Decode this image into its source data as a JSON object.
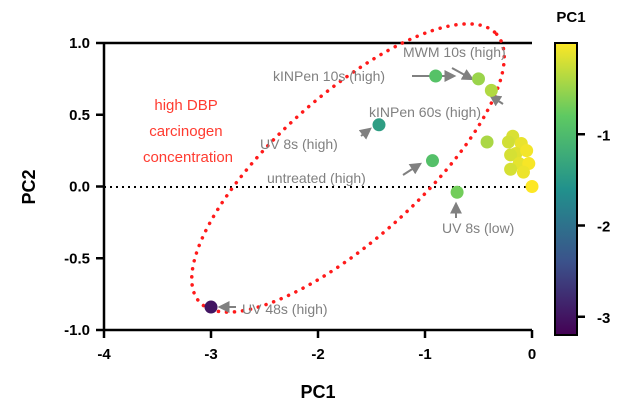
{
  "chart_data": {
    "type": "scatter",
    "xlabel": "PC1",
    "ylabel": "PC2",
    "xlim": [
      -4,
      0
    ],
    "ylim": [
      -1.0,
      1.0
    ],
    "x_ticks": [
      "-4",
      "-3",
      "-2",
      "-1",
      "0"
    ],
    "y_ticks": [
      "1.0",
      "0.5",
      "0.0",
      "-0.5",
      "-1.0"
    ],
    "zero_line": "dotted horizontal line at PC2 = 0",
    "colorbar": {
      "title": "PC1",
      "ticks": [
        "-1",
        "-2",
        "-3"
      ],
      "range": [
        -3.2,
        0
      ],
      "colormap": "viridis"
    },
    "points": [
      {
        "x": -3.0,
        "y": -0.84,
        "color_value": -3.0
      },
      {
        "x": -1.43,
        "y": 0.43,
        "color_value": -1.43
      },
      {
        "x": -0.9,
        "y": 0.77,
        "color_value": -0.9
      },
      {
        "x": -0.93,
        "y": 0.18,
        "color_value": -0.93
      },
      {
        "x": -0.7,
        "y": -0.04,
        "color_value": -0.7
      },
      {
        "x": -0.5,
        "y": 0.75,
        "color_value": -0.5
      },
      {
        "x": -0.38,
        "y": 0.67,
        "color_value": -0.38
      },
      {
        "x": -0.42,
        "y": 0.31,
        "color_value": -0.42
      },
      {
        "x": -0.18,
        "y": 0.35,
        "color_value": -0.18
      },
      {
        "x": -0.1,
        "y": 0.3,
        "color_value": -0.1
      },
      {
        "x": -0.22,
        "y": 0.31,
        "color_value": -0.22
      },
      {
        "x": -0.15,
        "y": 0.23,
        "color_value": -0.15
      },
      {
        "x": -0.05,
        "y": 0.25,
        "color_value": -0.05
      },
      {
        "x": -0.2,
        "y": 0.22,
        "color_value": -0.2
      },
      {
        "x": -0.12,
        "y": 0.16,
        "color_value": -0.12
      },
      {
        "x": -0.03,
        "y": 0.16,
        "color_value": -0.03
      },
      {
        "x": -0.2,
        "y": 0.12,
        "color_value": -0.2
      },
      {
        "x": -0.08,
        "y": 0.1,
        "color_value": -0.08
      },
      {
        "x": 0.0,
        "y": 0.0,
        "color_value": 0.0
      }
    ],
    "annotations": [
      {
        "text": "MWM 10s (high)",
        "target": [
          -0.5,
          0.75
        ]
      },
      {
        "text": "kINPen 10s (high)",
        "target": [
          -0.9,
          0.77
        ]
      },
      {
        "text": "kINPen 60s (high)",
        "target": [
          -0.38,
          0.67
        ]
      },
      {
        "text": "UV 8s (high)",
        "target": [
          -1.43,
          0.43
        ]
      },
      {
        "text": "untreated (high)",
        "target": [
          -0.93,
          0.18
        ]
      },
      {
        "text": "UV 8s (low)",
        "target": [
          -0.7,
          -0.04
        ]
      },
      {
        "text": "UV 48s (high)",
        "target": [
          -3.0,
          -0.84
        ]
      }
    ],
    "group_note": [
      "high DBP",
      "carcinogen",
      "concentration"
    ],
    "group_ellipse_color": "#ff1a1a"
  }
}
